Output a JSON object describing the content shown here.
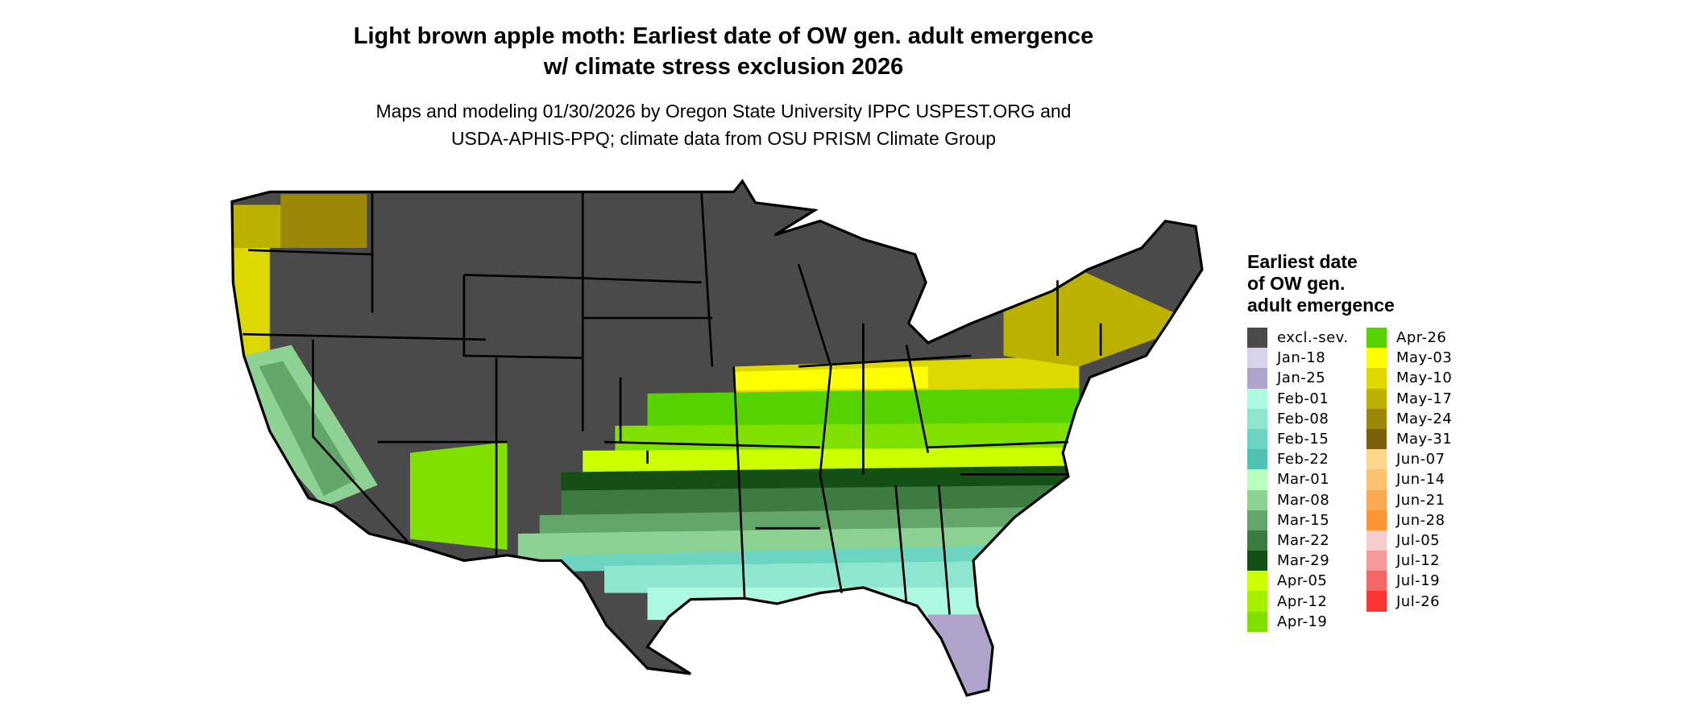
{
  "title": {
    "line1": "Light brown apple moth: Earliest date of OW gen. adult emergence",
    "line2": "w/ climate stress exclusion 2026"
  },
  "subtitle": {
    "line1": "Maps and modeling 01/30/2026 by Oregon State University IPPC USPEST.ORG and",
    "line2": "USDA-APHIS-PPQ; climate data from OSU PRISM Climate Group"
  },
  "legend": {
    "title_lines": [
      "Earliest date",
      "of OW gen.",
      "adult emergence"
    ],
    "items": [
      {
        "label": "excl.-sev.",
        "color": "#4a4a4a"
      },
      {
        "label": "Jan-18",
        "color": "#d9d2e9"
      },
      {
        "label": "Jan-25",
        "color": "#afa3cb"
      },
      {
        "label": "Feb-01",
        "color": "#adf9e1"
      },
      {
        "label": "Feb-08",
        "color": "#8ee6d1"
      },
      {
        "label": "Feb-15",
        "color": "#6ed4c2"
      },
      {
        "label": "Feb-22",
        "color": "#50c2b4"
      },
      {
        "label": "Mar-01",
        "color": "#bbffbf"
      },
      {
        "label": "Mar-08",
        "color": "#8dd293"
      },
      {
        "label": "Mar-15",
        "color": "#64a66a"
      },
      {
        "label": "Mar-22",
        "color": "#3d7b40"
      },
      {
        "label": "Mar-29",
        "color": "#145014"
      },
      {
        "label": "Apr-05",
        "color": "#ccff00"
      },
      {
        "label": "Apr-12",
        "color": "#a6ef00"
      },
      {
        "label": "Apr-19",
        "color": "#80e000"
      },
      {
        "label": "Apr-26",
        "color": "#55d200"
      },
      {
        "label": "May-03",
        "color": "#ffff00"
      },
      {
        "label": "May-10",
        "color": "#ddd800"
      },
      {
        "label": "May-17",
        "color": "#bdb100"
      },
      {
        "label": "May-24",
        "color": "#9c870a"
      },
      {
        "label": "May-31",
        "color": "#7b600a"
      },
      {
        "label": "Jun-07",
        "color": "#fdd58b"
      },
      {
        "label": "Jun-14",
        "color": "#fdc06f"
      },
      {
        "label": "Jun-21",
        "color": "#fbaa52"
      },
      {
        "label": "Jun-28",
        "color": "#fb9535"
      },
      {
        "label": "Jul-05",
        "color": "#f4cccc"
      },
      {
        "label": "Jul-12",
        "color": "#f49999"
      },
      {
        "label": "Jul-19",
        "color": "#f56666"
      },
      {
        "label": "Jul-26",
        "color": "#fb3333"
      }
    ]
  }
}
